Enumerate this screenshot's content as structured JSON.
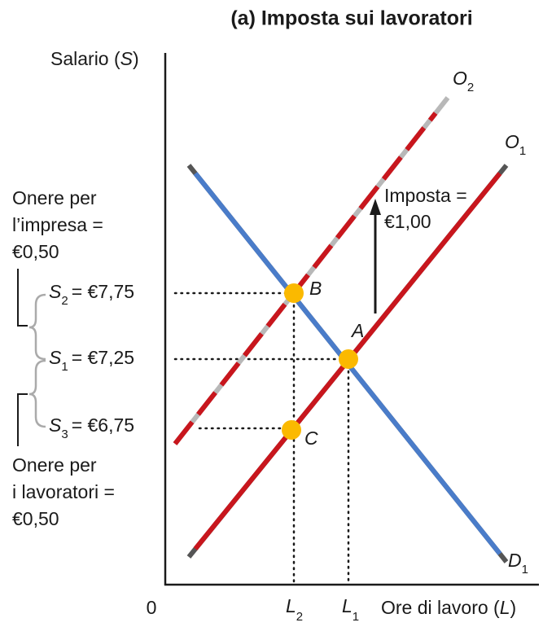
{
  "title": "(a) Imposta sui lavoratori",
  "y_axis": {
    "text": "Salario (",
    "symbol": "S",
    "close": ")"
  },
  "x_axis": {
    "text": "Ore di lavoro (",
    "symbol": "L",
    "close": ")"
  },
  "origin": "0",
  "curves": [
    {
      "name": "O",
      "sub": "2"
    },
    {
      "name": "O",
      "sub": "1"
    },
    {
      "name": "D",
      "sub": "1"
    }
  ],
  "points": [
    "A",
    "B",
    "C"
  ],
  "quantities": [
    {
      "name": "L",
      "sub": "2"
    },
    {
      "name": "L",
      "sub": "1"
    }
  ],
  "wages": [
    {
      "name": "S",
      "sub": "2",
      "text": "= €7,75"
    },
    {
      "name": "S",
      "sub": "1",
      "text": "= €7,25"
    },
    {
      "name": "S",
      "sub": "3",
      "text": "= €6,75"
    }
  ],
  "tax": [
    "Imposta =",
    "€1,00"
  ],
  "burdens": [
    {
      "lines": [
        "Onere per",
        "l’impresa =",
        "€0,50"
      ]
    },
    {
      "lines": [
        "Onere per",
        "i lavoratori =",
        "€0,50"
      ]
    }
  ]
}
